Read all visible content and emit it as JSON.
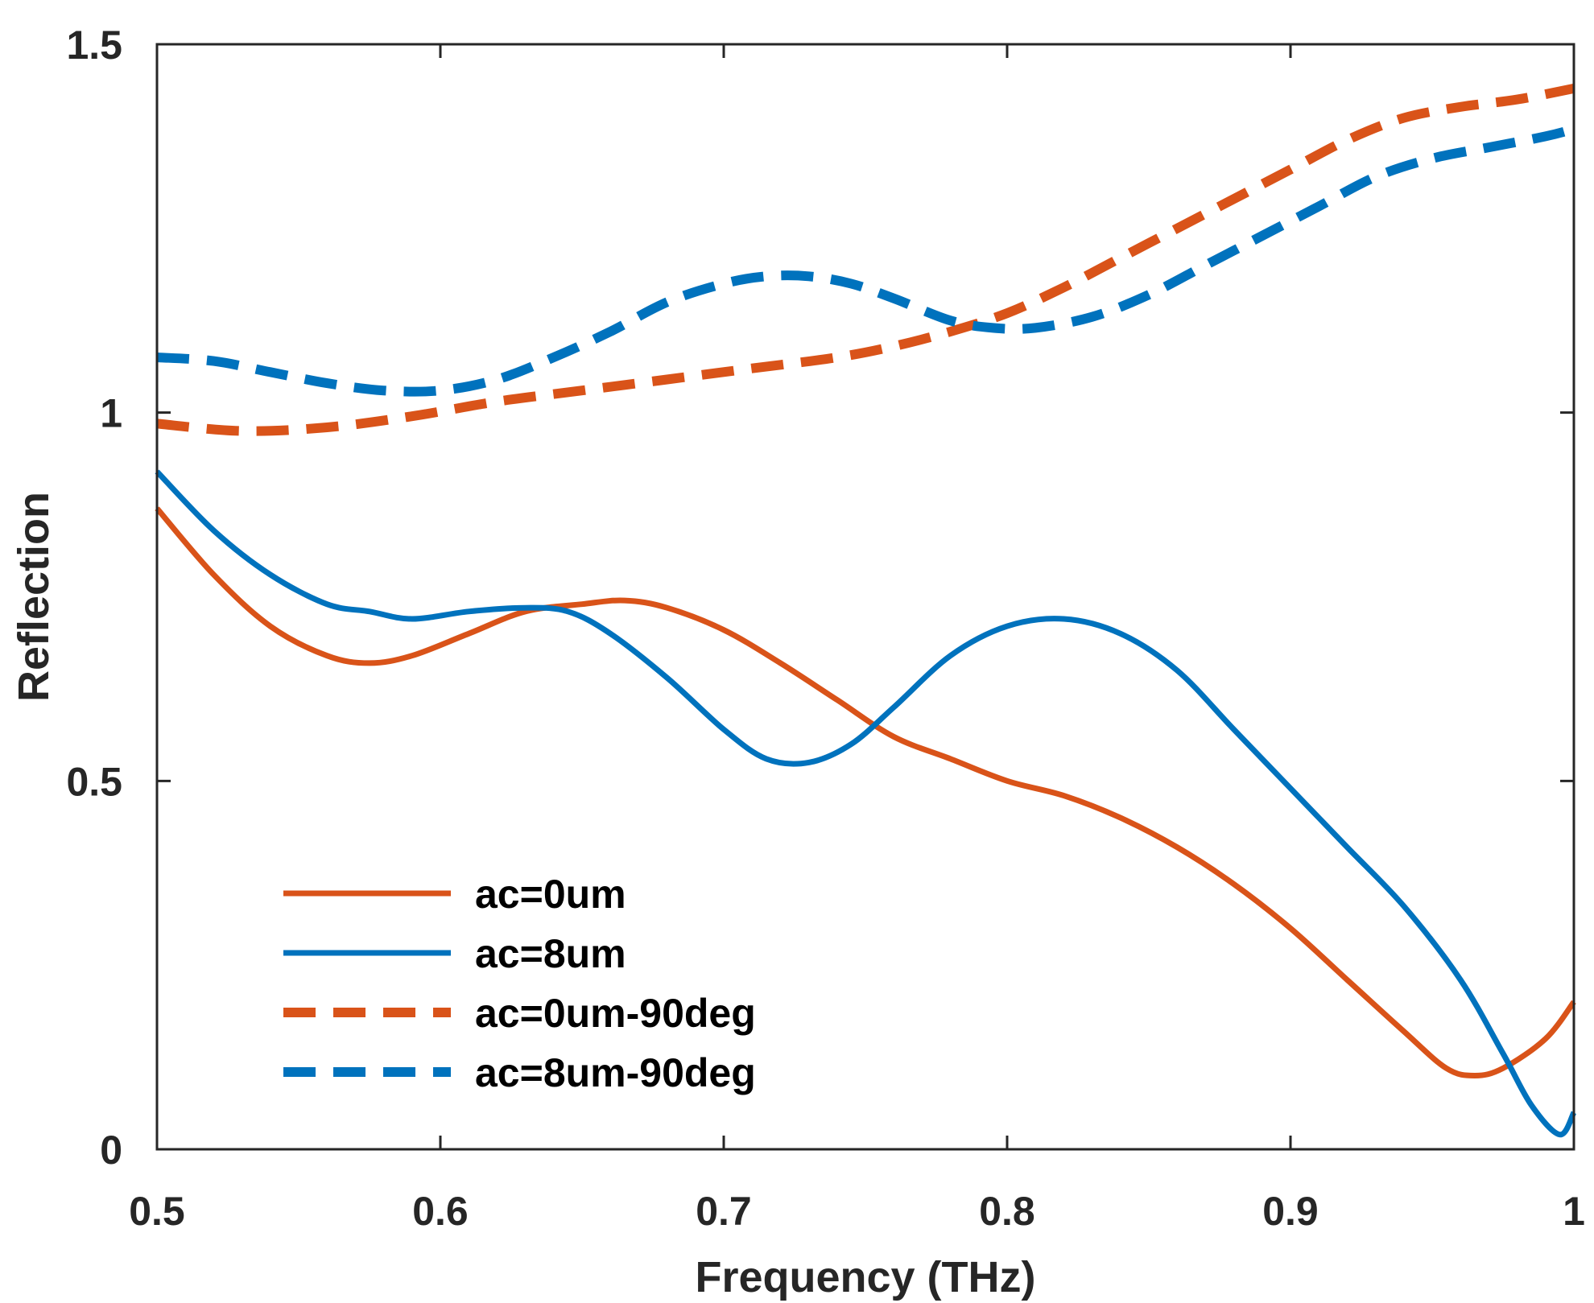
{
  "chart_data": {
    "type": "line",
    "title": "",
    "xlabel": "Frequency (THz)",
    "ylabel": "Reflection",
    "xlim": [
      0.5,
      1.0
    ],
    "ylim": [
      0,
      1.5
    ],
    "x_ticks": [
      0.5,
      0.6,
      0.7,
      0.8,
      0.9,
      1.0
    ],
    "x_tick_labels": [
      "0.5",
      "0.6",
      "0.7",
      "0.8",
      "0.9",
      "1"
    ],
    "y_ticks": [
      0,
      0.5,
      1.0,
      1.5
    ],
    "y_tick_labels": [
      "0",
      "0.5",
      "1",
      "1.5"
    ],
    "grid": false,
    "legend_position": "bottom-left",
    "series": [
      {
        "name": "ac=0um",
        "color": "#D95319",
        "dash": "solid",
        "x": [
          0.5,
          0.52,
          0.54,
          0.56,
          0.575,
          0.59,
          0.61,
          0.63,
          0.65,
          0.665,
          0.68,
          0.7,
          0.72,
          0.74,
          0.76,
          0.78,
          0.8,
          0.82,
          0.84,
          0.86,
          0.88,
          0.9,
          0.92,
          0.94,
          0.955,
          0.965,
          0.975,
          0.99,
          1.0
        ],
        "y": [
          0.87,
          0.78,
          0.71,
          0.67,
          0.66,
          0.67,
          0.7,
          0.73,
          0.74,
          0.745,
          0.735,
          0.705,
          0.66,
          0.61,
          0.56,
          0.53,
          0.5,
          0.48,
          0.45,
          0.41,
          0.36,
          0.3,
          0.23,
          0.16,
          0.11,
          0.1,
          0.11,
          0.15,
          0.2
        ]
      },
      {
        "name": "ac=8um",
        "color": "#0072BD",
        "dash": "solid",
        "x": [
          0.5,
          0.52,
          0.54,
          0.56,
          0.575,
          0.59,
          0.61,
          0.63,
          0.645,
          0.66,
          0.68,
          0.7,
          0.715,
          0.73,
          0.745,
          0.76,
          0.78,
          0.8,
          0.82,
          0.84,
          0.86,
          0.88,
          0.9,
          0.92,
          0.94,
          0.96,
          0.975,
          0.985,
          0.995,
          1.0
        ],
        "y": [
          0.92,
          0.84,
          0.78,
          0.74,
          0.73,
          0.72,
          0.73,
          0.735,
          0.73,
          0.7,
          0.64,
          0.57,
          0.53,
          0.525,
          0.55,
          0.6,
          0.67,
          0.71,
          0.72,
          0.7,
          0.65,
          0.57,
          0.49,
          0.41,
          0.33,
          0.23,
          0.13,
          0.06,
          0.02,
          0.05
        ]
      },
      {
        "name": "ac=0um-90deg",
        "color": "#D95319",
        "dash": "dashed",
        "x": [
          0.5,
          0.53,
          0.56,
          0.59,
          0.62,
          0.65,
          0.68,
          0.71,
          0.74,
          0.76,
          0.78,
          0.8,
          0.82,
          0.84,
          0.86,
          0.88,
          0.9,
          0.92,
          0.94,
          0.96,
          0.98,
          1.0
        ],
        "y": [
          0.985,
          0.975,
          0.98,
          0.995,
          1.015,
          1.03,
          1.045,
          1.06,
          1.075,
          1.09,
          1.11,
          1.135,
          1.17,
          1.21,
          1.25,
          1.29,
          1.33,
          1.37,
          1.4,
          1.415,
          1.425,
          1.44
        ]
      },
      {
        "name": "ac=8um-90deg",
        "color": "#0072BD",
        "dash": "dashed",
        "x": [
          0.5,
          0.52,
          0.54,
          0.56,
          0.58,
          0.6,
          0.62,
          0.64,
          0.66,
          0.68,
          0.7,
          0.715,
          0.73,
          0.745,
          0.76,
          0.78,
          0.795,
          0.81,
          0.83,
          0.85,
          0.87,
          0.89,
          0.91,
          0.93,
          0.95,
          0.97,
          0.99,
          1.0
        ],
        "y": [
          1.075,
          1.07,
          1.055,
          1.04,
          1.03,
          1.03,
          1.045,
          1.075,
          1.11,
          1.15,
          1.175,
          1.185,
          1.185,
          1.175,
          1.155,
          1.125,
          1.115,
          1.115,
          1.13,
          1.16,
          1.2,
          1.24,
          1.28,
          1.32,
          1.345,
          1.36,
          1.375,
          1.385
        ]
      }
    ]
  }
}
